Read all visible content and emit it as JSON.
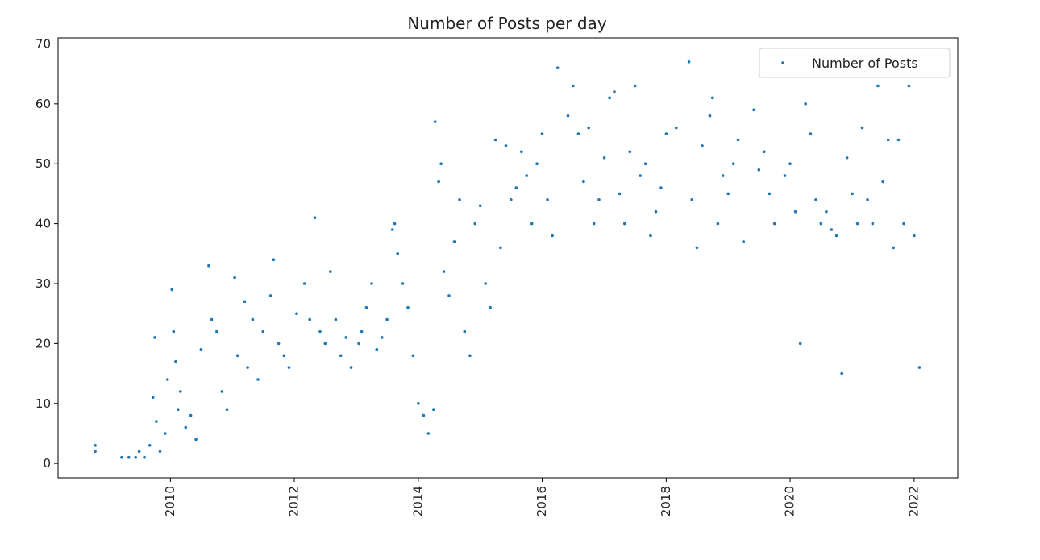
{
  "chart_data": {
    "type": "scatter",
    "title": "Number of Posts per day",
    "xlabel": "",
    "ylabel": "",
    "x_range": [
      "2008-03-10",
      "2022-09-15"
    ],
    "y_range": [
      -2.4,
      71
    ],
    "x_ticks": [
      "2010",
      "2012",
      "2014",
      "2016",
      "2018",
      "2020",
      "2022"
    ],
    "y_ticks": [
      0,
      10,
      20,
      30,
      40,
      50,
      60,
      70
    ],
    "grid": false,
    "legend": {
      "position": "top-right",
      "entries": [
        "Number of Posts"
      ]
    },
    "marker_color": "#1f77b4",
    "series": [
      {
        "name": "Number of Posts",
        "points": [
          [
            "2008-10-15",
            2
          ],
          [
            "2008-10-15",
            3
          ],
          [
            "2009-03-20",
            1
          ],
          [
            "2009-05-01",
            1
          ],
          [
            "2009-06-10",
            1
          ],
          [
            "2009-07-01",
            2
          ],
          [
            "2009-08-01",
            1
          ],
          [
            "2009-09-01",
            3
          ],
          [
            "2009-09-20",
            11
          ],
          [
            "2009-10-01",
            21
          ],
          [
            "2009-10-10",
            7
          ],
          [
            "2009-11-01",
            2
          ],
          [
            "2009-12-01",
            5
          ],
          [
            "2009-12-15",
            14
          ],
          [
            "2010-01-10",
            29
          ],
          [
            "2010-01-20",
            22
          ],
          [
            "2010-02-01",
            17
          ],
          [
            "2010-02-15",
            9
          ],
          [
            "2010-03-01",
            12
          ],
          [
            "2010-04-01",
            6
          ],
          [
            "2010-05-01",
            8
          ],
          [
            "2010-06-01",
            4
          ],
          [
            "2010-07-01",
            19
          ],
          [
            "2010-08-15",
            33
          ],
          [
            "2010-09-01",
            24
          ],
          [
            "2010-10-01",
            22
          ],
          [
            "2010-11-01",
            12
          ],
          [
            "2010-12-01",
            9
          ],
          [
            "2011-01-15",
            31
          ],
          [
            "2011-02-01",
            18
          ],
          [
            "2011-03-15",
            27
          ],
          [
            "2011-04-01",
            16
          ],
          [
            "2011-05-01",
            24
          ],
          [
            "2011-06-01",
            14
          ],
          [
            "2011-07-01",
            22
          ],
          [
            "2011-08-15",
            28
          ],
          [
            "2011-09-01",
            34
          ],
          [
            "2011-10-01",
            20
          ],
          [
            "2011-11-01",
            18
          ],
          [
            "2011-12-01",
            16
          ],
          [
            "2012-01-15",
            25
          ],
          [
            "2012-03-01",
            30
          ],
          [
            "2012-04-01",
            24
          ],
          [
            "2012-05-01",
            41
          ],
          [
            "2012-06-01",
            22
          ],
          [
            "2012-07-01",
            20
          ],
          [
            "2012-08-01",
            32
          ],
          [
            "2012-09-01",
            24
          ],
          [
            "2012-10-01",
            18
          ],
          [
            "2012-11-01",
            21
          ],
          [
            "2012-12-01",
            16
          ],
          [
            "2013-01-15",
            20
          ],
          [
            "2013-02-01",
            22
          ],
          [
            "2013-03-01",
            26
          ],
          [
            "2013-04-01",
            30
          ],
          [
            "2013-05-01",
            19
          ],
          [
            "2013-06-01",
            21
          ],
          [
            "2013-07-01",
            24
          ],
          [
            "2013-08-01",
            39
          ],
          [
            "2013-08-15",
            40
          ],
          [
            "2013-09-01",
            35
          ],
          [
            "2013-10-01",
            30
          ],
          [
            "2013-11-01",
            26
          ],
          [
            "2013-12-01",
            18
          ],
          [
            "2014-01-01",
            10
          ],
          [
            "2014-02-01",
            8
          ],
          [
            "2014-03-01",
            5
          ],
          [
            "2014-04-01",
            9
          ],
          [
            "2014-04-10",
            57
          ],
          [
            "2014-05-01",
            47
          ],
          [
            "2014-05-15",
            50
          ],
          [
            "2014-06-01",
            32
          ],
          [
            "2014-07-01",
            28
          ],
          [
            "2014-08-01",
            37
          ],
          [
            "2014-09-01",
            44
          ],
          [
            "2014-10-01",
            22
          ],
          [
            "2014-11-01",
            18
          ],
          [
            "2014-12-01",
            40
          ],
          [
            "2015-01-01",
            43
          ],
          [
            "2015-02-01",
            30
          ],
          [
            "2015-03-01",
            26
          ],
          [
            "2015-04-01",
            54
          ],
          [
            "2015-05-01",
            36
          ],
          [
            "2015-06-01",
            53
          ],
          [
            "2015-07-01",
            44
          ],
          [
            "2015-08-01",
            46
          ],
          [
            "2015-09-01",
            52
          ],
          [
            "2015-10-01",
            48
          ],
          [
            "2015-11-01",
            40
          ],
          [
            "2015-12-01",
            50
          ],
          [
            "2016-01-01",
            55
          ],
          [
            "2016-02-01",
            44
          ],
          [
            "2016-03-01",
            38
          ],
          [
            "2016-04-01",
            66
          ],
          [
            "2016-06-01",
            58
          ],
          [
            "2016-07-01",
            63
          ],
          [
            "2016-08-01",
            55
          ],
          [
            "2016-09-01",
            47
          ],
          [
            "2016-10-01",
            56
          ],
          [
            "2016-11-01",
            40
          ],
          [
            "2016-12-01",
            44
          ],
          [
            "2017-01-01",
            51
          ],
          [
            "2017-02-01",
            61
          ],
          [
            "2017-03-01",
            62
          ],
          [
            "2017-04-01",
            45
          ],
          [
            "2017-05-01",
            40
          ],
          [
            "2017-06-01",
            52
          ],
          [
            "2017-07-01",
            63
          ],
          [
            "2017-08-01",
            48
          ],
          [
            "2017-09-01",
            50
          ],
          [
            "2017-10-01",
            38
          ],
          [
            "2017-11-01",
            42
          ],
          [
            "2017-12-01",
            46
          ],
          [
            "2018-01-01",
            55
          ],
          [
            "2018-03-01",
            56
          ],
          [
            "2018-05-15",
            67
          ],
          [
            "2018-06-01",
            44
          ],
          [
            "2018-07-01",
            36
          ],
          [
            "2018-08-01",
            53
          ],
          [
            "2018-09-15",
            58
          ],
          [
            "2018-10-01",
            61
          ],
          [
            "2018-11-01",
            40
          ],
          [
            "2018-12-01",
            48
          ],
          [
            "2019-01-01",
            45
          ],
          [
            "2019-02-01",
            50
          ],
          [
            "2019-03-01",
            54
          ],
          [
            "2019-04-01",
            37
          ],
          [
            "2019-06-01",
            59
          ],
          [
            "2019-07-01",
            49
          ],
          [
            "2019-08-01",
            52
          ],
          [
            "2019-09-01",
            45
          ],
          [
            "2019-10-01",
            40
          ],
          [
            "2019-12-01",
            48
          ],
          [
            "2020-01-01",
            50
          ],
          [
            "2020-02-01",
            42
          ],
          [
            "2020-03-01",
            20
          ],
          [
            "2020-04-01",
            60
          ],
          [
            "2020-05-01",
            55
          ],
          [
            "2020-06-01",
            44
          ],
          [
            "2020-07-01",
            40
          ],
          [
            "2020-08-01",
            42
          ],
          [
            "2020-09-01",
            39
          ],
          [
            "2020-10-01",
            38
          ],
          [
            "2020-11-01",
            15
          ],
          [
            "2020-12-01",
            51
          ],
          [
            "2021-01-01",
            45
          ],
          [
            "2021-02-01",
            40
          ],
          [
            "2021-03-01",
            56
          ],
          [
            "2021-04-01",
            44
          ],
          [
            "2021-05-01",
            40
          ],
          [
            "2021-06-01",
            63
          ],
          [
            "2021-07-01",
            47
          ],
          [
            "2021-08-01",
            54
          ],
          [
            "2021-09-01",
            36
          ],
          [
            "2021-10-01",
            54
          ],
          [
            "2021-11-01",
            40
          ],
          [
            "2021-12-01",
            63
          ],
          [
            "2022-01-01",
            38
          ],
          [
            "2022-02-01",
            16
          ]
        ]
      }
    ]
  }
}
